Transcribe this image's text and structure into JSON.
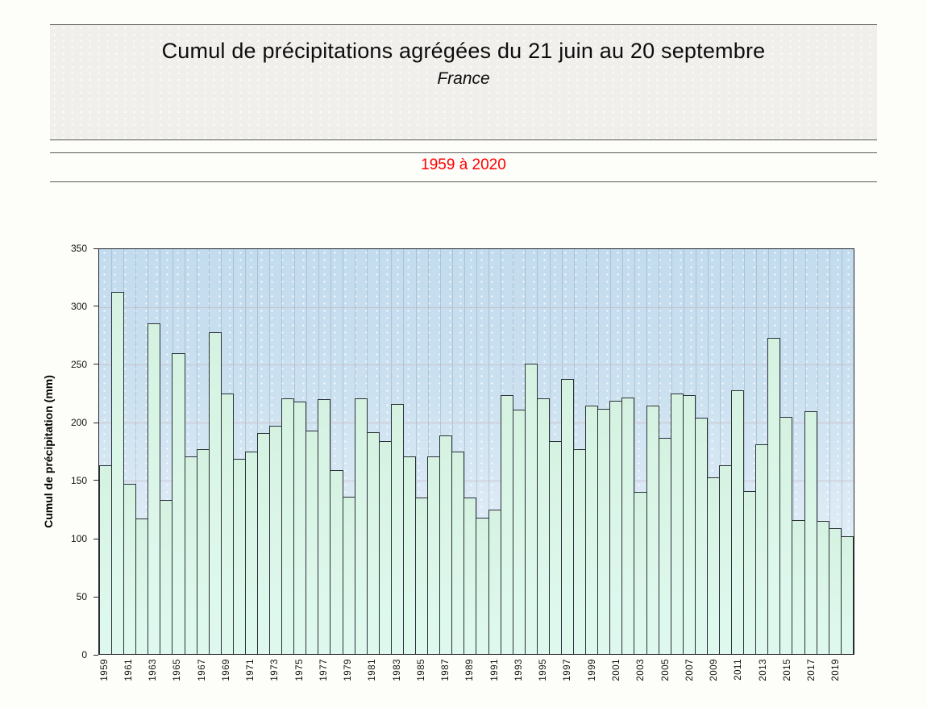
{
  "page": {
    "title": "Cumul de précipitations agrégées du 21 juin au 20 septembre",
    "subtitle": "France",
    "period": "1959 à 2020"
  },
  "colors": {
    "period_text": "#ff0000",
    "bar_fill": "#dcf7ea",
    "bar_border": "#2a3038",
    "plot_bg_top": "#c2dbee",
    "plot_bg_bottom": "#f0f6fb",
    "h_gridline": "#d2b8bc",
    "v_gridline": "#96a6b6"
  },
  "chart_data": {
    "type": "bar",
    "title": "Cumul de précipitations agrégées du 21 juin au 20 septembre",
    "subtitle": "France",
    "period": "1959 à 2020",
    "xlabel": "",
    "ylabel": "Cumul de précipitation (mm)",
    "ylim": [
      0,
      350
    ],
    "yticks": [
      0,
      50,
      100,
      150,
      200,
      250,
      300,
      350
    ],
    "x_tick_label_step": 2,
    "grid": true,
    "legend_position": "none",
    "categories": [
      1959,
      1960,
      1961,
      1962,
      1963,
      1964,
      1965,
      1966,
      1967,
      1968,
      1969,
      1970,
      1971,
      1972,
      1973,
      1974,
      1975,
      1976,
      1977,
      1978,
      1979,
      1980,
      1981,
      1982,
      1983,
      1984,
      1985,
      1986,
      1987,
      1988,
      1989,
      1990,
      1991,
      1992,
      1993,
      1994,
      1995,
      1996,
      1997,
      1998,
      1999,
      2000,
      2001,
      2002,
      2003,
      2004,
      2005,
      2006,
      2007,
      2008,
      2009,
      2010,
      2011,
      2012,
      2013,
      2014,
      2015,
      2016,
      2017,
      2018,
      2019,
      2020
    ],
    "values": [
      163,
      313,
      147,
      117,
      286,
      133,
      260,
      171,
      177,
      278,
      225,
      169,
      175,
      191,
      197,
      221,
      218,
      193,
      220,
      159,
      136,
      221,
      192,
      184,
      216,
      171,
      135,
      171,
      189,
      175,
      135,
      118,
      125,
      224,
      211,
      251,
      221,
      184,
      238,
      177,
      215,
      212,
      219,
      222,
      140,
      215,
      187,
      225,
      224,
      204,
      153,
      163,
      228,
      141,
      181,
      273,
      205,
      116,
      210,
      115,
      109,
      102
    ]
  }
}
